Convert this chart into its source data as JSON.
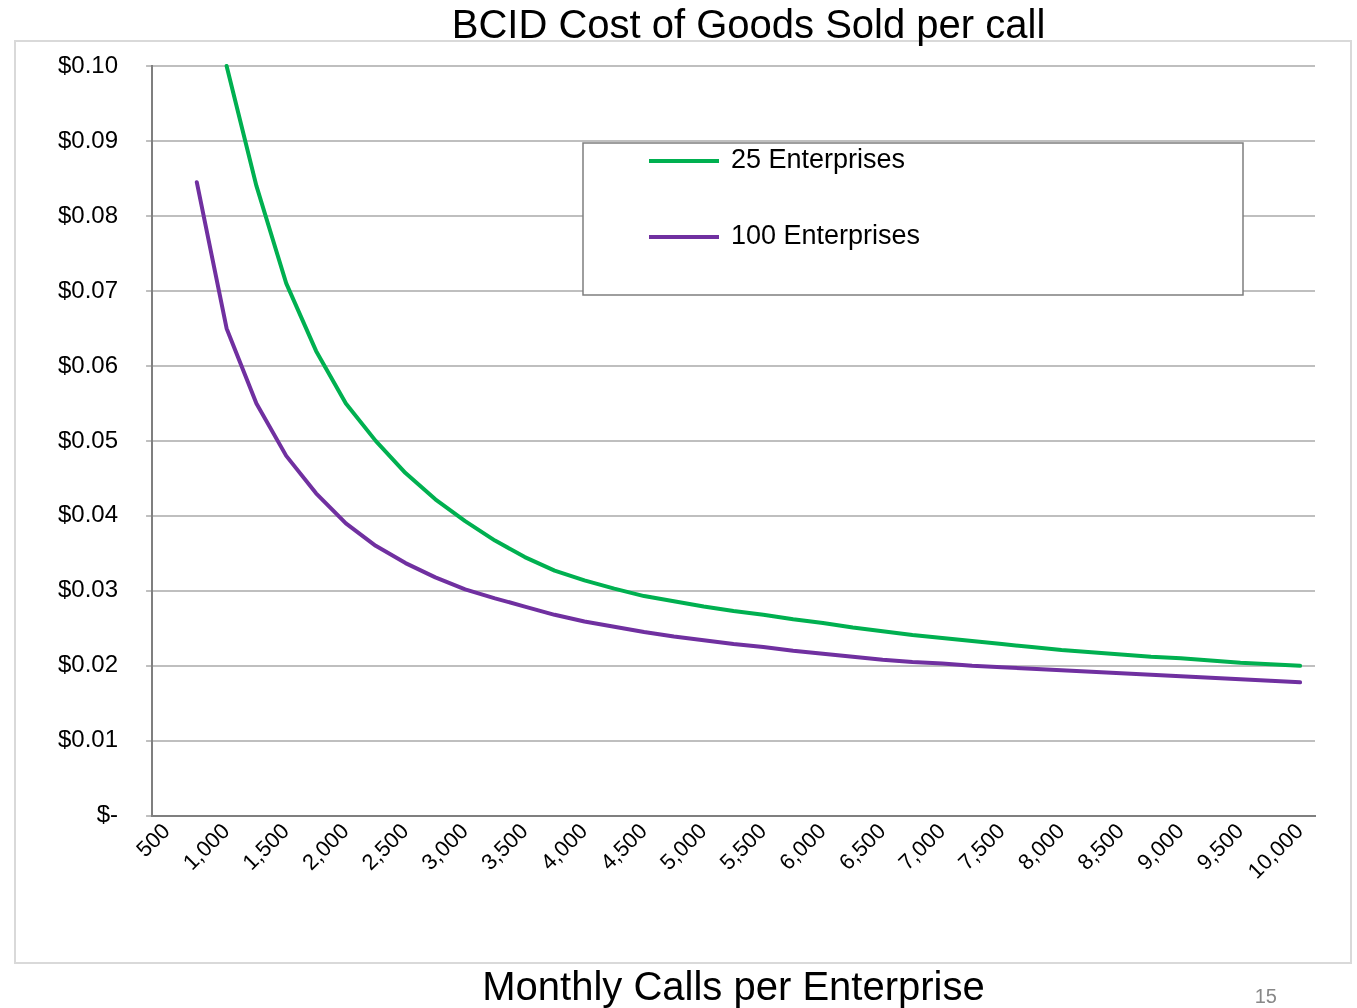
{
  "chart_data": {
    "type": "line",
    "title": "BCID Cost of Goods Sold per call",
    "xlabel": "Monthly Calls per Enterprise",
    "categories": [
      "500",
      null,
      "1,000",
      null,
      "1,500",
      null,
      "2,000",
      null,
      "2,500",
      null,
      "3,000",
      null,
      "3,500",
      null,
      "4,000",
      null,
      "4,500",
      null,
      "5,000",
      null,
      "5,500",
      null,
      "6,000",
      null,
      "6,500",
      null,
      "7,000",
      null,
      "7,500",
      null,
      "8,000",
      null,
      "8,500",
      null,
      "9,000",
      null,
      "9,500",
      null,
      "10,000"
    ],
    "series": [
      {
        "name": "25 Enterprises",
        "color": "#00b050",
        "values": [
          null,
          null,
          0.1,
          0.084,
          0.071,
          0.062,
          0.055,
          0.05,
          0.0457,
          0.0422,
          0.0393,
          0.0367,
          0.0345,
          0.0327,
          0.0314,
          0.0303,
          0.0293,
          0.0286,
          0.0279,
          0.0273,
          0.0268,
          0.0262,
          0.0257,
          0.0251,
          0.0246,
          0.0241,
          0.0237,
          0.0233,
          0.0229,
          0.0225,
          0.0221,
          0.0218,
          0.0215,
          0.0212,
          0.021,
          0.0207,
          0.0204,
          0.0202,
          0.02
        ]
      },
      {
        "name": "100 Enterprises",
        "color": "#7030a0",
        "values": [
          null,
          0.0845,
          0.065,
          0.055,
          0.048,
          0.043,
          0.039,
          0.036,
          0.0337,
          0.0318,
          0.0302,
          0.029,
          0.0279,
          0.0268,
          0.0259,
          0.0252,
          0.0245,
          0.0239,
          0.0234,
          0.0229,
          0.0225,
          0.022,
          0.0216,
          0.0212,
          0.0208,
          0.0205,
          0.0203,
          0.02,
          0.0198,
          0.0196,
          0.0194,
          0.0192,
          0.019,
          0.0188,
          0.0186,
          0.0184,
          0.0182,
          0.018,
          0.0178
        ]
      }
    ],
    "ylim": [
      0,
      0.1
    ],
    "yticks": [
      {
        "value": 0,
        "label": "$-"
      },
      {
        "value": 0.01,
        "label": "$0.01"
      },
      {
        "value": 0.02,
        "label": "$0.02"
      },
      {
        "value": 0.03,
        "label": "$0.03"
      },
      {
        "value": 0.04,
        "label": "$0.04"
      },
      {
        "value": 0.05,
        "label": "$0.05"
      },
      {
        "value": 0.06,
        "label": "$0.06"
      },
      {
        "value": 0.07,
        "label": "$0.07"
      },
      {
        "value": 0.08,
        "label": "$0.08"
      },
      {
        "value": 0.09,
        "label": "$0.09"
      },
      {
        "value": 0.1,
        "label": "$0.10"
      }
    ],
    "grid": "y",
    "legend": "top right",
    "marker": "none",
    "line_style": "solid",
    "annotations": [
      "15"
    ]
  }
}
